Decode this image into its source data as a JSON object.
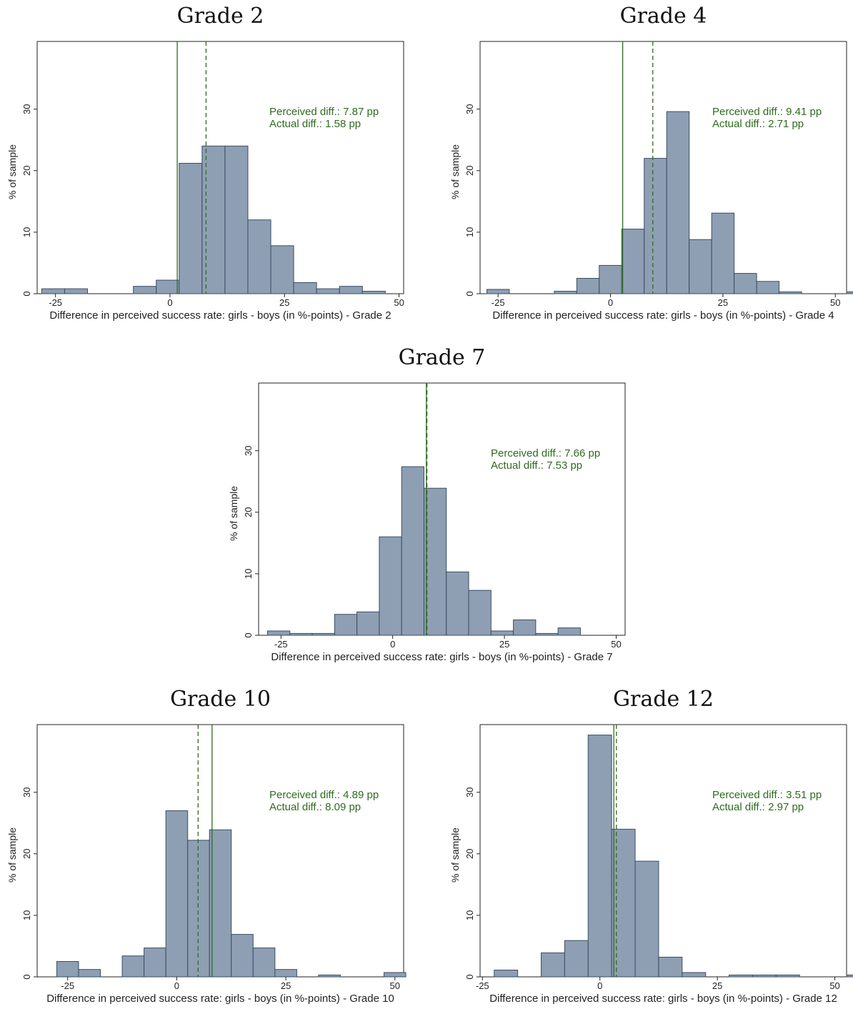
{
  "style": {
    "bar_fill": "#8e9fb3",
    "bar_stroke": "#3a4d63",
    "ref_line": "#2e6b1e",
    "annotation": "#2e6b1e"
  },
  "chart_data": [
    {
      "type": "bar",
      "title": "Grade 2",
      "xlabel": "Difference in perceived success rate: girls - boys (in %-points) - Grade 2",
      "ylabel": "% of sample",
      "xlim": [
        -29,
        51
      ],
      "ylim": [
        0,
        41
      ],
      "xticks": [
        -25,
        0,
        25,
        50
      ],
      "yticks": [
        0,
        10,
        20,
        30
      ],
      "bin_width": 5,
      "bin_start": -28,
      "values": [
        0.8,
        0.8,
        0,
        0,
        1.2,
        2.2,
        21.2,
        24,
        24,
        12,
        7.8,
        1.8,
        0.8,
        1.2,
        0.4
      ],
      "perceived_diff": 7.87,
      "actual_diff": 1.58,
      "perceived_text": "Perceived diff.: 7.87 pp",
      "actual_text": "Actual diff.: 1.58 pp",
      "legend_position": "top-right"
    },
    {
      "type": "bar",
      "title": "Grade 4",
      "xlabel": "Difference in perceived success rate: girls - boys (in %-points) - Grade 4",
      "ylabel": "% of sample",
      "xlim": [
        -29,
        52.5
      ],
      "ylim": [
        0,
        41
      ],
      "xticks": [
        -25,
        0,
        25,
        50
      ],
      "yticks": [
        0,
        10,
        20,
        30
      ],
      "bin_width": 5,
      "bin_start": -27.5,
      "values": [
        0.7,
        0,
        0,
        0.4,
        2.5,
        4.6,
        10.5,
        22,
        29.6,
        8.8,
        13.1,
        3.3,
        2,
        0.3,
        0,
        0,
        0.3,
        0.3
      ],
      "perceived_diff": 9.41,
      "actual_diff": 2.71,
      "perceived_text": "Perceived diff.: 9.41 pp",
      "actual_text": "Actual diff.: 2.71 pp",
      "legend_position": "top-right"
    },
    {
      "type": "bar",
      "title": "Grade 7",
      "xlabel": "Difference in perceived success rate: girls - boys (in %-points) - Grade 7",
      "ylabel": "% of sample",
      "xlim": [
        -30,
        52
      ],
      "ylim": [
        0,
        41
      ],
      "xticks": [
        -25,
        0,
        25,
        50
      ],
      "yticks": [
        0,
        10,
        20,
        30
      ],
      "bin_width": 5,
      "bin_start": -28,
      "values": [
        0.7,
        0.3,
        0.3,
        3.4,
        3.8,
        16,
        27.4,
        23.9,
        10.3,
        7.3,
        0.7,
        2.5,
        0.3,
        1.2
      ],
      "perceived_diff": 7.66,
      "actual_diff": 7.53,
      "perceived_text": "Perceived diff.: 7.66 pp",
      "actual_text": "Actual diff.: 7.53 pp",
      "legend_position": "top-right"
    },
    {
      "type": "bar",
      "title": "Grade 10",
      "xlabel": "Difference in perceived success rate: girls - boys (in %-points) - Grade 10",
      "ylabel": "% of sample",
      "xlim": [
        -32,
        52
      ],
      "ylim": [
        0,
        41
      ],
      "xticks": [
        -25,
        0,
        25,
        50
      ],
      "yticks": [
        0,
        10,
        20,
        30
      ],
      "bin_width": 5,
      "bin_start": -27.5,
      "values": [
        2.5,
        1.2,
        0,
        3.4,
        4.7,
        27,
        22.2,
        23.9,
        6.9,
        4.7,
        1.2,
        0,
        0.3,
        0,
        0,
        0.7
      ],
      "perceived_diff": 4.89,
      "actual_diff": 8.09,
      "perceived_text": "Perceived diff.: 4.89 pp",
      "actual_text": "Actual diff.: 8.09 pp",
      "legend_position": "top-right"
    },
    {
      "type": "bar",
      "title": "Grade 12",
      "xlabel": "Difference in perceived success rate: girls - boys (in %-points) - Grade 12",
      "ylabel": "% of sample",
      "xlim": [
        -25.5,
        52.5
      ],
      "ylim": [
        0,
        41
      ],
      "xticks": [
        -25,
        0,
        25,
        50
      ],
      "yticks": [
        0,
        10,
        20,
        30
      ],
      "bin_width": 5,
      "bin_start": -22.5,
      "values": [
        1.1,
        0,
        3.9,
        5.9,
        39.3,
        24,
        18.8,
        3.2,
        0.7,
        0,
        0.3,
        0.3,
        0.3,
        0,
        0,
        0.3
      ],
      "perceived_diff": 3.51,
      "actual_diff": 2.97,
      "perceived_text": "Perceived diff.: 3.51 pp",
      "actual_text": "Actual diff.: 2.97 pp",
      "legend_position": "top-right"
    }
  ]
}
